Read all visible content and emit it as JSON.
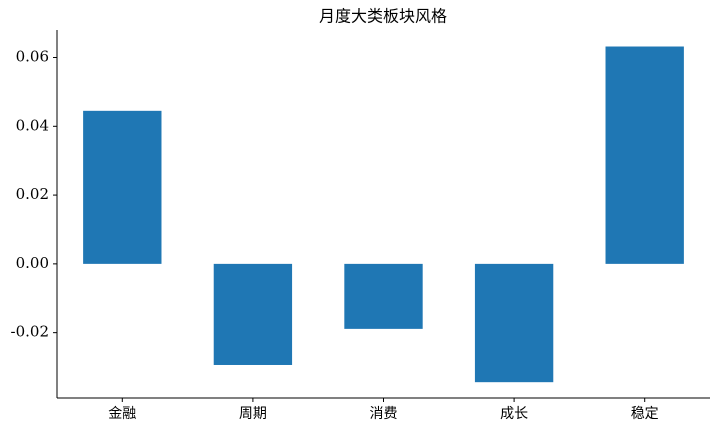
{
  "chart_data": {
    "type": "bar",
    "title": "月度大类板块风格",
    "categories": [
      "金融",
      "周期",
      "消费",
      "成长",
      "稳定"
    ],
    "values": [
      0.0445,
      -0.0294,
      -0.0189,
      -0.0344,
      0.0632
    ],
    "color": "#1f77b4",
    "ylim": [
      -0.039,
      0.068
    ],
    "yticks": [
      -0.02,
      {
        "value": 0,
        "label": "0.00"
      },
      0.02,
      0.04,
      0.06
    ],
    "grid": false
  }
}
